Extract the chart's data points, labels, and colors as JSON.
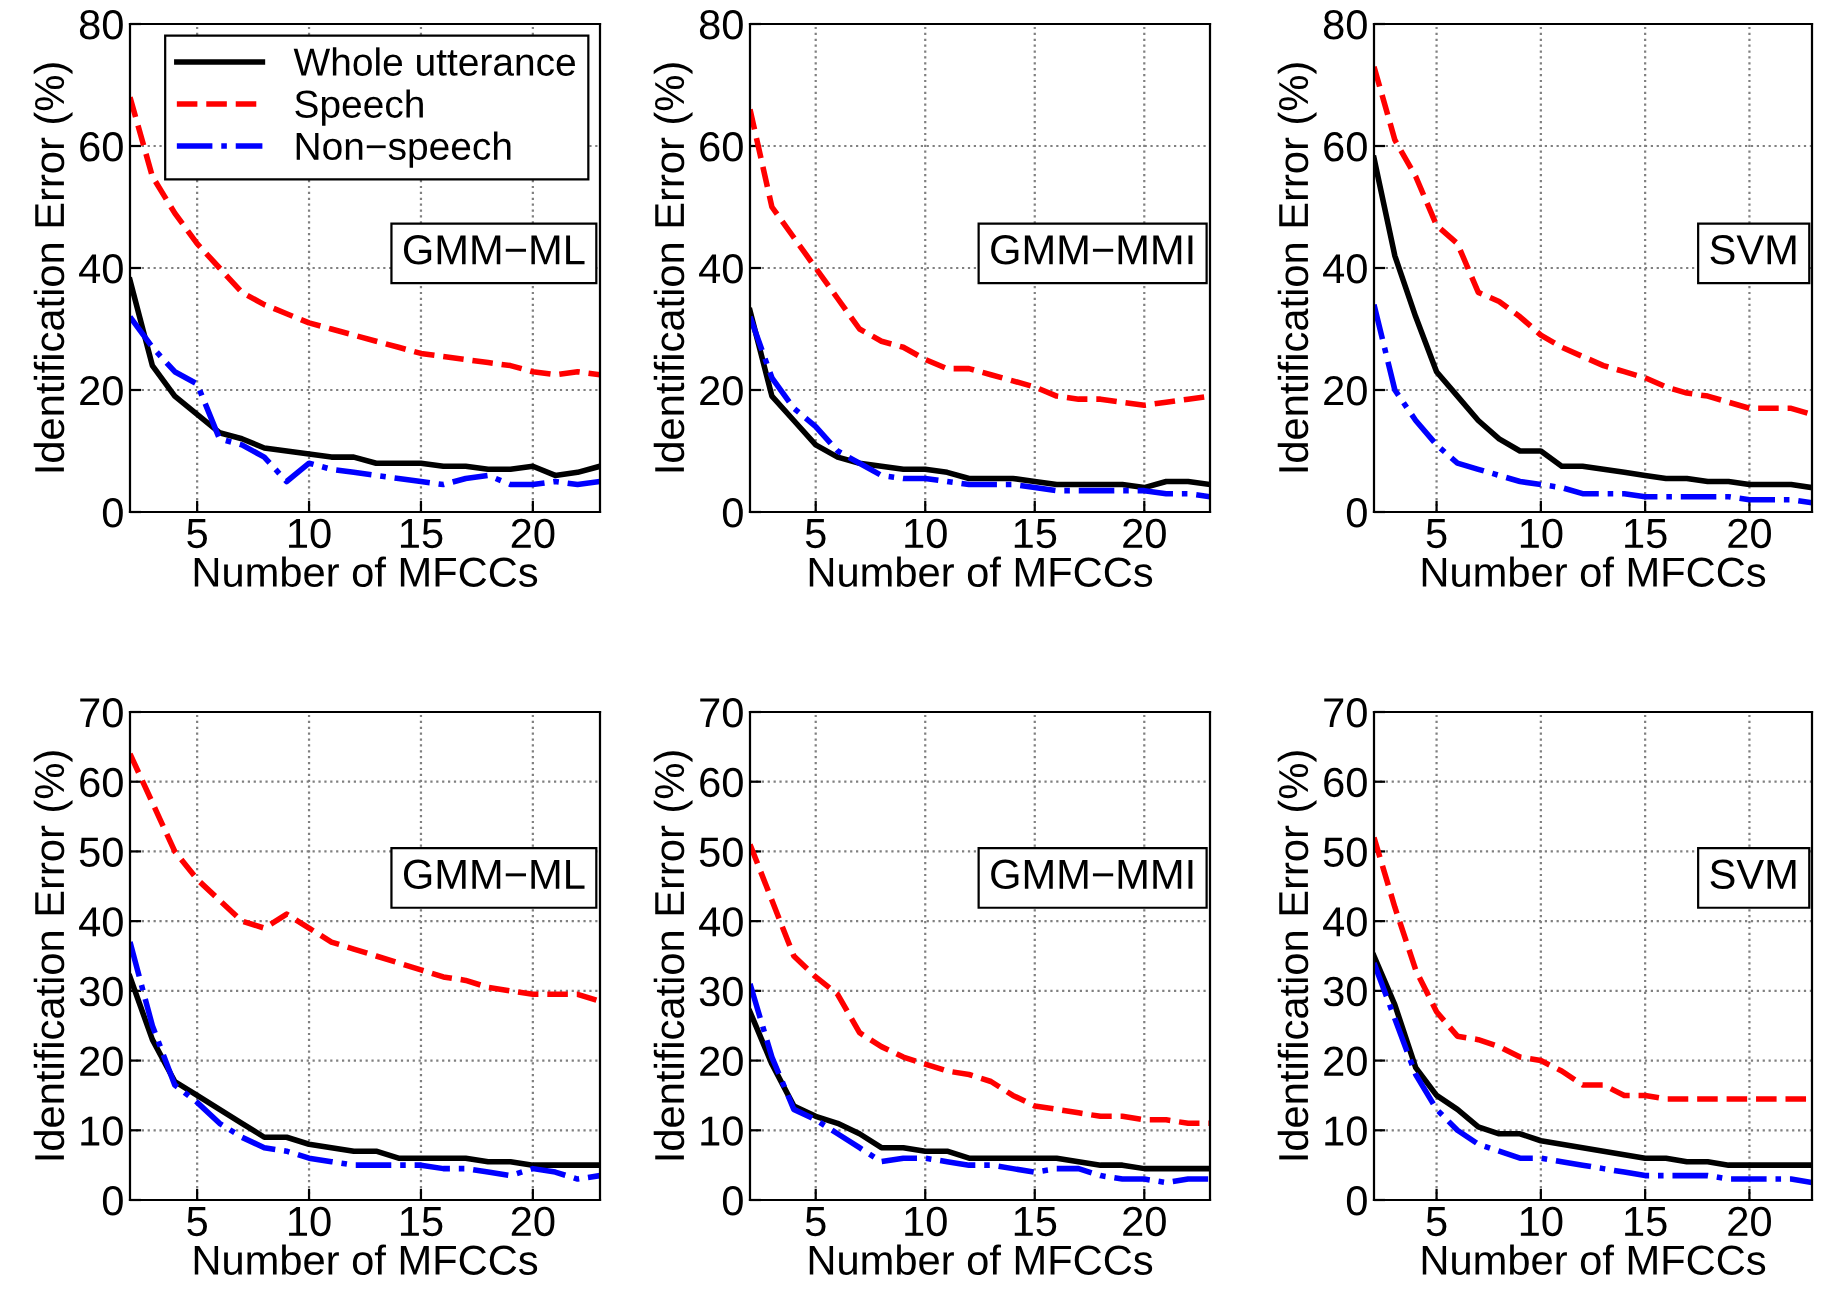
{
  "chart_data": [
    {
      "type": "line",
      "xlabel": "Number of MFCCs",
      "ylabel": "Identification Error (%)",
      "annotations": [
        "GMM−ML"
      ],
      "x": [
        2,
        3,
        4,
        5,
        6,
        7,
        8,
        9,
        10,
        11,
        12,
        13,
        14,
        15,
        16,
        17,
        18,
        19,
        20,
        21,
        22,
        23
      ],
      "xlim": [
        2,
        23
      ],
      "xticks": [
        5,
        10,
        15,
        20
      ],
      "ylim": [
        0,
        80
      ],
      "yticks": [
        0,
        20,
        40,
        60,
        80
      ],
      "grid": true,
      "legend": "top right",
      "series": [
        {
          "name": "Whole utterance",
          "color": "#000000",
          "line_style": "solid",
          "values": [
            38,
            24,
            19,
            16,
            13,
            12,
            10.5,
            10,
            9.5,
            9,
            9,
            8,
            8,
            8,
            7.5,
            7.5,
            7,
            7,
            7.5,
            6,
            6.5,
            7.5
          ]
        },
        {
          "name": "Speech",
          "color": "#ff0000",
          "line_style": "dashed",
          "values": [
            68,
            55,
            49,
            44,
            40,
            36,
            34,
            32.5,
            31,
            30,
            29,
            28,
            27,
            26,
            25.5,
            25,
            24.5,
            24,
            23,
            22.5,
            23,
            22.5
          ]
        },
        {
          "name": "Non−speech",
          "color": "#0000ff",
          "line_style": "dashdot",
          "values": [
            32,
            27,
            23,
            21,
            12,
            11,
            9,
            5,
            8,
            7,
            6.5,
            6,
            5.5,
            5,
            4.5,
            5.5,
            6,
            4.5,
            4.5,
            5,
            4.5,
            5
          ]
        }
      ]
    },
    {
      "type": "line",
      "xlabel": "Number of MFCCs",
      "ylabel": "Identification Error (%)",
      "annotations": [
        "GMM−MMI"
      ],
      "x": [
        2,
        3,
        4,
        5,
        6,
        7,
        8,
        9,
        10,
        11,
        12,
        13,
        14,
        15,
        16,
        17,
        18,
        19,
        20,
        21,
        22,
        23
      ],
      "xlim": [
        2,
        23
      ],
      "xticks": [
        5,
        10,
        15,
        20
      ],
      "ylim": [
        0,
        80
      ],
      "yticks": [
        0,
        20,
        40,
        60,
        80
      ],
      "grid": true,
      "series": [
        {
          "color": "#000000",
          "line_style": "solid",
          "values": [
            33,
            19,
            15,
            11,
            9,
            8,
            7.5,
            7,
            7,
            6.5,
            5.5,
            5.5,
            5.5,
            5,
            4.5,
            4.5,
            4.5,
            4.5,
            4,
            5,
            5,
            4.5
          ]
        },
        {
          "color": "#ff0000",
          "line_style": "dashed",
          "values": [
            66,
            50,
            45,
            40,
            35,
            30,
            28,
            27,
            25,
            23.5,
            23.5,
            22.5,
            21.5,
            20.5,
            19,
            18.5,
            18.5,
            18,
            17.5,
            18,
            18.5,
            19
          ]
        },
        {
          "color": "#0000ff",
          "line_style": "dashdot",
          "values": [
            32,
            22,
            17,
            14,
            10,
            8,
            6,
            5.5,
            5.5,
            5,
            4.5,
            4.5,
            4.5,
            4,
            3.5,
            3.5,
            3.5,
            3.5,
            3.5,
            3,
            3,
            2.5
          ]
        }
      ]
    },
    {
      "type": "line",
      "xlabel": "Number of MFCCs",
      "ylabel": "Identification Error (%)",
      "annotations": [
        "SVM"
      ],
      "x": [
        2,
        3,
        4,
        5,
        6,
        7,
        8,
        9,
        10,
        11,
        12,
        13,
        14,
        15,
        16,
        17,
        18,
        19,
        20,
        21,
        22,
        23
      ],
      "xlim": [
        2,
        23
      ],
      "xticks": [
        5,
        10,
        15,
        20
      ],
      "ylim": [
        0,
        80
      ],
      "yticks": [
        0,
        20,
        40,
        60,
        80
      ],
      "grid": true,
      "series": [
        {
          "color": "#000000",
          "line_style": "solid",
          "values": [
            58,
            42,
            32,
            23,
            19,
            15,
            12,
            10,
            10,
            7.5,
            7.5,
            7,
            6.5,
            6,
            5.5,
            5.5,
            5,
            5,
            4.5,
            4.5,
            4.5,
            4
          ]
        },
        {
          "color": "#ff0000",
          "line_style": "dashed",
          "values": [
            73,
            61,
            55,
            47,
            44,
            36,
            34.5,
            32,
            29,
            27,
            25.5,
            24,
            23,
            22,
            20.5,
            19.5,
            19,
            18,
            17,
            17,
            17,
            16
          ]
        },
        {
          "color": "#0000ff",
          "line_style": "dashdot",
          "values": [
            34,
            20,
            15,
            11,
            8,
            7,
            6,
            5,
            4.5,
            4,
            3,
            3,
            3,
            2.5,
            2.5,
            2.5,
            2.5,
            2.5,
            2,
            2,
            2,
            1.5
          ]
        }
      ]
    },
    {
      "type": "line",
      "xlabel": "Number of MFCCs",
      "ylabel": "Identification Error (%)",
      "annotations": [
        "GMM−ML"
      ],
      "x": [
        2,
        3,
        4,
        5,
        6,
        7,
        8,
        9,
        10,
        11,
        12,
        13,
        14,
        15,
        16,
        17,
        18,
        19,
        20,
        21,
        22,
        23
      ],
      "xlim": [
        2,
        23
      ],
      "xticks": [
        5,
        10,
        15,
        20
      ],
      "ylim": [
        0,
        70
      ],
      "yticks": [
        0,
        10,
        20,
        30,
        40,
        50,
        60,
        70
      ],
      "grid": true,
      "series": [
        {
          "color": "#000000",
          "line_style": "solid",
          "values": [
            32,
            23,
            17,
            15,
            13,
            11,
            9,
            9,
            8,
            7.5,
            7,
            7,
            6,
            6,
            6,
            6,
            5.5,
            5.5,
            5,
            5,
            5,
            5
          ]
        },
        {
          "color": "#ff0000",
          "line_style": "dashed",
          "values": [
            64,
            57,
            50,
            46,
            43,
            40,
            39,
            41,
            39,
            37,
            36,
            35,
            34,
            33,
            32,
            31.5,
            30.5,
            30,
            29.5,
            29.5,
            29.5,
            28.5
          ]
        },
        {
          "color": "#0000ff",
          "line_style": "dashdot",
          "values": [
            37,
            25,
            16.5,
            14,
            11,
            9,
            7.5,
            7,
            6,
            5.5,
            5,
            5,
            5,
            5,
            4.5,
            4.5,
            4,
            3.5,
            4.5,
            4,
            3,
            3.5
          ]
        }
      ]
    },
    {
      "type": "line",
      "xlabel": "Number of MFCCs",
      "ylabel": "Identification Error (%)",
      "annotations": [
        "GMM−MMI"
      ],
      "x": [
        2,
        3,
        4,
        5,
        6,
        7,
        8,
        9,
        10,
        11,
        12,
        13,
        14,
        15,
        16,
        17,
        18,
        19,
        20,
        21,
        22,
        23
      ],
      "xlim": [
        2,
        23
      ],
      "xticks": [
        5,
        10,
        15,
        20
      ],
      "ylim": [
        0,
        70
      ],
      "yticks": [
        0,
        10,
        20,
        30,
        40,
        50,
        60,
        70
      ],
      "grid": true,
      "series": [
        {
          "color": "#000000",
          "line_style": "solid",
          "values": [
            27,
            19.5,
            13.5,
            12,
            11,
            9.5,
            7.5,
            7.5,
            7,
            7,
            6,
            6,
            6,
            6,
            6,
            5.5,
            5,
            5,
            4.5,
            4.5,
            4.5,
            4.5
          ]
        },
        {
          "color": "#ff0000",
          "line_style": "dashed",
          "values": [
            51,
            43,
            35,
            32,
            29.5,
            24,
            22,
            20.5,
            19.5,
            18.5,
            18,
            17,
            15,
            13.5,
            13,
            12.5,
            12,
            12,
            11.5,
            11.5,
            11,
            11
          ]
        },
        {
          "color": "#0000ff",
          "line_style": "dashdot",
          "values": [
            31,
            20.5,
            13,
            11.5,
            9.5,
            7.5,
            5.5,
            6,
            6,
            5.5,
            5,
            5,
            4.5,
            4,
            4.5,
            4.5,
            3.5,
            3,
            3,
            2.5,
            3,
            3
          ]
        }
      ]
    },
    {
      "type": "line",
      "xlabel": "Number of MFCCs",
      "ylabel": "Identification Error (%)",
      "annotations": [
        "SVM"
      ],
      "x": [
        2,
        3,
        4,
        5,
        6,
        7,
        8,
        9,
        10,
        11,
        12,
        13,
        14,
        15,
        16,
        17,
        18,
        19,
        20,
        21,
        22,
        23
      ],
      "xlim": [
        2,
        23
      ],
      "xticks": [
        5,
        10,
        15,
        20
      ],
      "ylim": [
        0,
        70
      ],
      "yticks": [
        0,
        10,
        20,
        30,
        40,
        50,
        60,
        70
      ],
      "grid": true,
      "series": [
        {
          "color": "#000000",
          "line_style": "solid",
          "values": [
            35,
            28,
            19,
            15,
            13,
            10.5,
            9.5,
            9.5,
            8.5,
            8,
            7.5,
            7,
            6.5,
            6,
            6,
            5.5,
            5.5,
            5,
            5,
            5,
            5,
            5
          ]
        },
        {
          "color": "#ff0000",
          "line_style": "dashed",
          "values": [
            52,
            42,
            33,
            27,
            23.5,
            23,
            22,
            20.5,
            20,
            18.5,
            16.5,
            16.5,
            15,
            15,
            14.5,
            14.5,
            14.5,
            14.5,
            14.5,
            14.5,
            14.5,
            14.5
          ]
        },
        {
          "color": "#0000ff",
          "line_style": "dashdot",
          "values": [
            34,
            26,
            18,
            13,
            10,
            8,
            7,
            6,
            6,
            5.5,
            5,
            4.5,
            4,
            3.5,
            3.5,
            3.5,
            3.5,
            3,
            3,
            3,
            3,
            2.5
          ]
        }
      ]
    }
  ]
}
